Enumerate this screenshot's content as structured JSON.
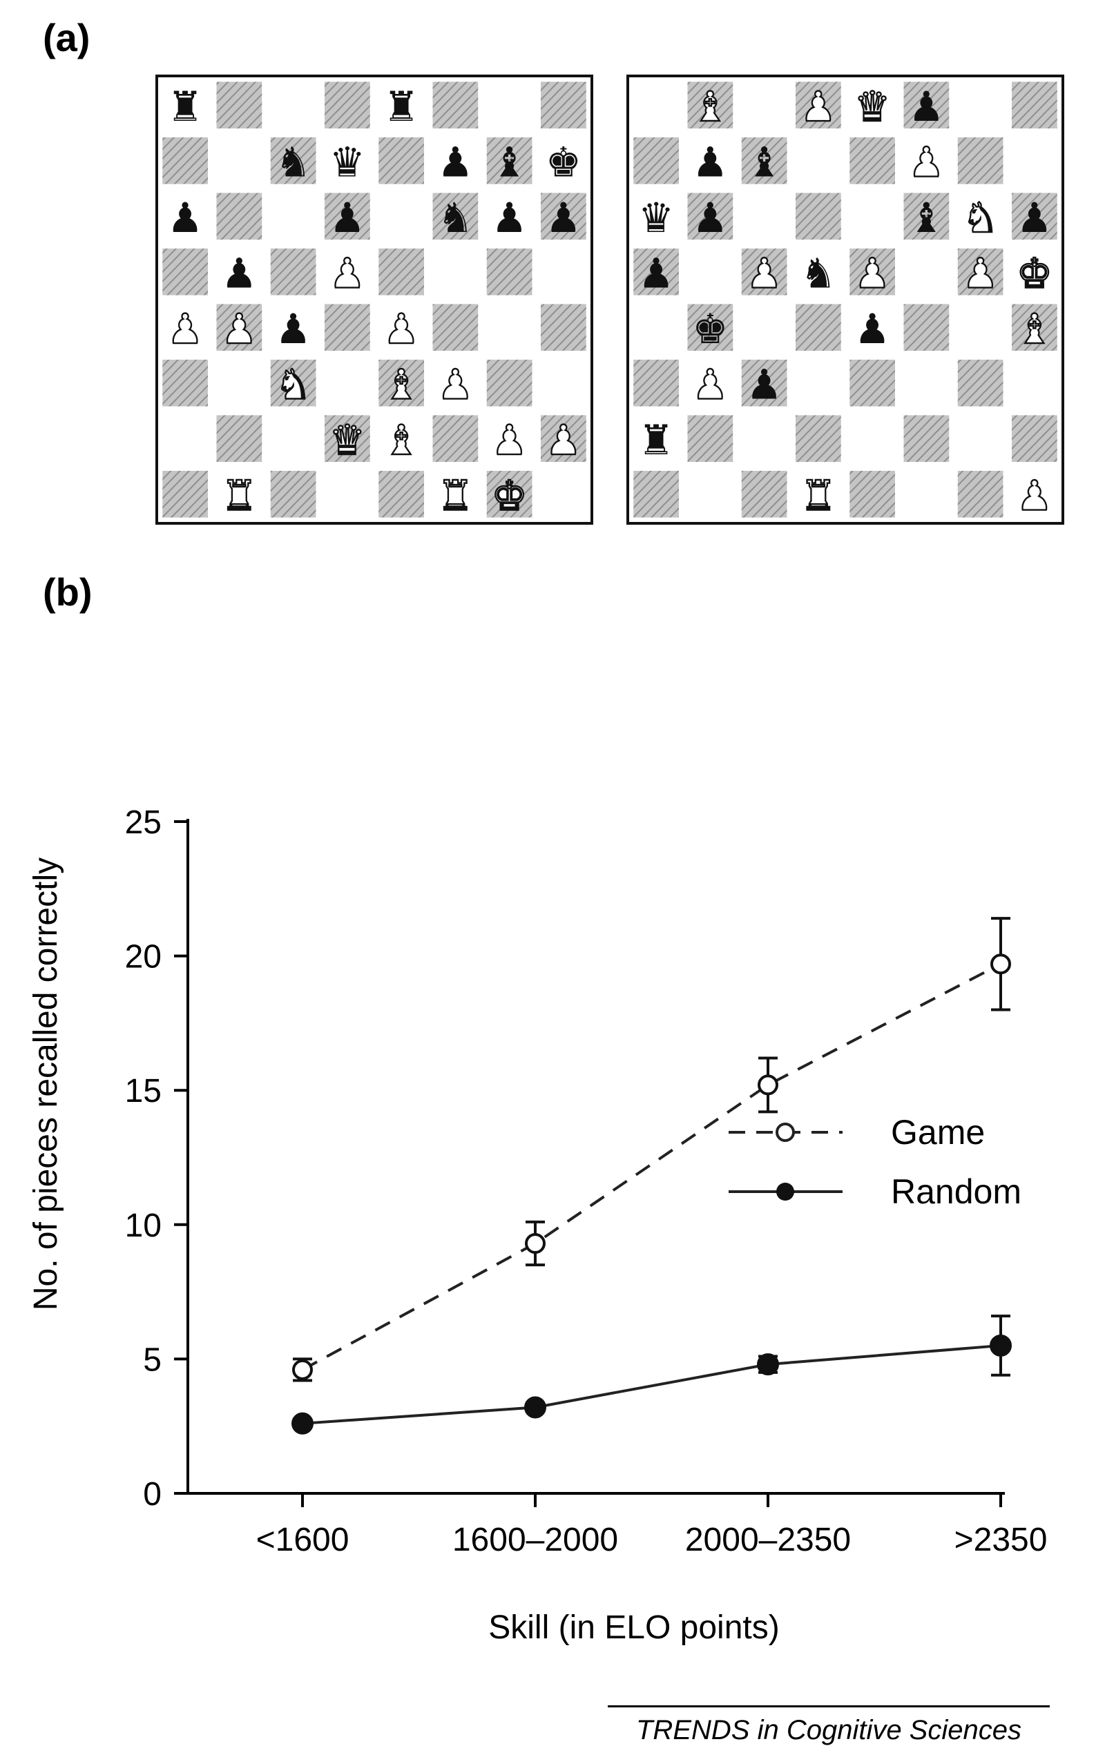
{
  "panel_labels": {
    "a": "(a)",
    "b": "(b)"
  },
  "boards": [
    {
      "name": "game-position",
      "rows": [
        [
          "br",
          "",
          "",
          "",
          "br",
          "",
          "",
          ""
        ],
        [
          "",
          "",
          "bn",
          "bq",
          "",
          "bp",
          "bb",
          "bk"
        ],
        [
          "bp",
          "",
          "",
          "bp",
          "",
          "bn",
          "bp",
          "bp"
        ],
        [
          "",
          "bp",
          "",
          "wp",
          "",
          "",
          "",
          ""
        ],
        [
          "wp",
          "wp",
          "bp",
          "",
          "wp",
          "",
          "",
          ""
        ],
        [
          "",
          "",
          "wn",
          "",
          "wb",
          "wp",
          "",
          ""
        ],
        [
          "",
          "",
          "",
          "wq",
          "wb",
          "",
          "wp",
          "wp"
        ],
        [
          "",
          "wr",
          "",
          "",
          "",
          "wr",
          "wk",
          ""
        ]
      ]
    },
    {
      "name": "random-position",
      "rows": [
        [
          "",
          "wb",
          "",
          "wp",
          "wq",
          "bp",
          "",
          ""
        ],
        [
          "",
          "bp",
          "bb",
          "",
          "",
          "wp",
          "",
          ""
        ],
        [
          "bq",
          "bp",
          "",
          "",
          "",
          "bb",
          "wn",
          "bp"
        ],
        [
          "bp",
          "",
          "wp",
          "bn",
          "wp",
          "",
          "wp",
          "wk"
        ],
        [
          "",
          "bk",
          "",
          "",
          "bp",
          "",
          "",
          "wb"
        ],
        [
          "",
          "wp",
          "bp",
          "",
          "",
          "",
          "",
          ""
        ],
        [
          "br",
          "",
          "",
          "",
          "",
          "",
          "",
          ""
        ],
        [
          "",
          "",
          "",
          "wr",
          "",
          "",
          "",
          "wp"
        ]
      ]
    }
  ],
  "piece_glyphs": {
    "k": "♚",
    "q": "♛",
    "r": "♜",
    "b": "♝",
    "n": "♞",
    "p": "♟"
  },
  "chart_data": {
    "type": "line",
    "categories": [
      "<1600",
      "1600–2000",
      "2000–2350",
      ">2350"
    ],
    "series": [
      {
        "name": "Game",
        "values": [
          4.6,
          9.3,
          15.2,
          19.7
        ],
        "error": [
          0.4,
          0.8,
          1.0,
          1.7
        ],
        "style": "dashed",
        "marker": "open-circle"
      },
      {
        "name": "Random",
        "values": [
          2.6,
          3.2,
          4.8,
          5.5
        ],
        "error": [
          0.0,
          0.0,
          0.3,
          1.1
        ],
        "style": "solid",
        "marker": "filled-circle"
      }
    ],
    "xlabel": "Skill (in ELO points)",
    "ylabel": "No. of pieces recalled correctly",
    "ylim": [
      0,
      25
    ],
    "yticks": [
      0,
      5,
      10,
      15,
      20,
      25
    ],
    "legend_position": "right-middle",
    "grid": false
  },
  "footer": "TRENDS in Cognitive Sciences",
  "colors": {
    "dark_square": "#c4c4c4",
    "hatch": "#8e8e8e",
    "line": "#222222"
  }
}
